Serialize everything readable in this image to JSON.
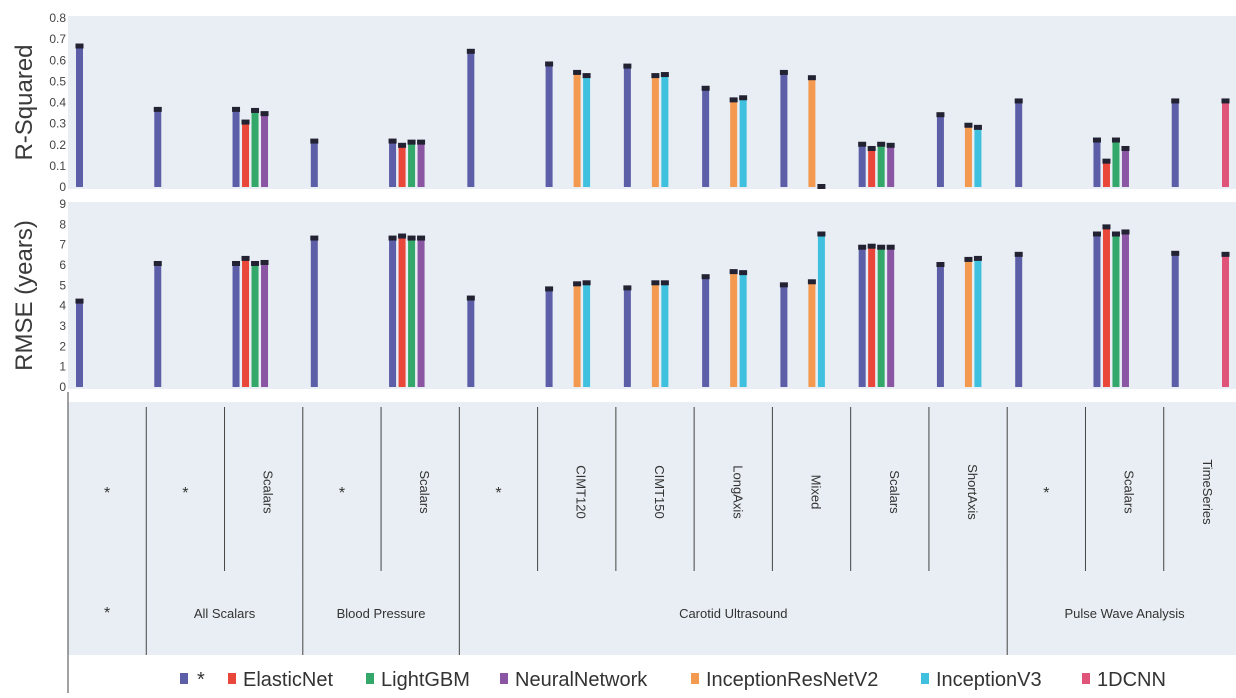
{
  "chart_data": {
    "type": "bar",
    "colors": {
      "panel_bg": "#e8eef3",
      "axis_line": "#444444",
      "error_bar": "#222233"
    },
    "groups": [
      {
        "top": "*",
        "bottom": "*"
      },
      {
        "top": "*",
        "bottom": "All Scalars"
      },
      {
        "top": "Scalars",
        "bottom": "All Scalars"
      },
      {
        "top": "*",
        "bottom": "Blood Pressure"
      },
      {
        "top": "Scalars",
        "bottom": "Blood Pressure"
      },
      {
        "top": "*",
        "bottom": "Carotid Ultrasound"
      },
      {
        "top": "CIMT120",
        "bottom": "Carotid Ultrasound"
      },
      {
        "top": "CIMT150",
        "bottom": "Carotid Ultrasound"
      },
      {
        "top": "LongAxis",
        "bottom": "Carotid Ultrasound"
      },
      {
        "top": "Mixed",
        "bottom": "Carotid Ultrasound"
      },
      {
        "top": "Scalars",
        "bottom": "Carotid Ultrasound"
      },
      {
        "top": "ShortAxis",
        "bottom": "Carotid Ultrasound"
      },
      {
        "top": "*",
        "bottom": "Pulse Wave Analysis"
      },
      {
        "top": "Scalars",
        "bottom": "Pulse Wave Analysis"
      },
      {
        "top": "TimeSeries",
        "bottom": "Pulse Wave Analysis"
      }
    ],
    "bottom_categories": [
      "*",
      "All Scalars",
      "Blood Pressure",
      "Carotid Ultrasound",
      "Pulse Wave Analysis"
    ],
    "series": [
      {
        "name": "*",
        "color": "#5c5fa8"
      },
      {
        "name": "ElasticNet",
        "color": "#e8473a"
      },
      {
        "name": "LightGBM",
        "color": "#33a86a"
      },
      {
        "name": "NeuralNetwork",
        "color": "#8a55a3"
      },
      {
        "name": "InceptionResNetV2",
        "color": "#f39a50"
      },
      {
        "name": "InceptionV3",
        "color": "#3fc0de"
      },
      {
        "name": "1DCNN",
        "color": "#e0547a"
      }
    ],
    "panels": [
      {
        "ylabel": "R-Squared",
        "ylim": [
          0,
          0.8
        ],
        "yticks": [
          "0",
          "0.1",
          "0.2",
          "0.3",
          "0.4",
          "0.5",
          "0.6",
          "0.7",
          "0.8"
        ],
        "bars": [
          {
            "group": 0,
            "series": "*",
            "value": 0.665
          },
          {
            "group": 1,
            "series": "*",
            "value": 0.365
          },
          {
            "group": 2,
            "series": "*",
            "value": 0.365
          },
          {
            "group": 2,
            "series": "ElasticNet",
            "value": 0.305
          },
          {
            "group": 2,
            "series": "LightGBM",
            "value": 0.36
          },
          {
            "group": 2,
            "series": "NeuralNetwork",
            "value": 0.345
          },
          {
            "group": 3,
            "series": "*",
            "value": 0.215
          },
          {
            "group": 4,
            "series": "*",
            "value": 0.215
          },
          {
            "group": 4,
            "series": "ElasticNet",
            "value": 0.195
          },
          {
            "group": 4,
            "series": "LightGBM",
            "value": 0.21
          },
          {
            "group": 4,
            "series": "NeuralNetwork",
            "value": 0.21
          },
          {
            "group": 5,
            "series": "*",
            "value": 0.64
          },
          {
            "group": 6,
            "series": "*",
            "value": 0.58
          },
          {
            "group": 6,
            "series": "InceptionResNetV2",
            "value": 0.54
          },
          {
            "group": 6,
            "series": "InceptionV3",
            "value": 0.525
          },
          {
            "group": 7,
            "series": "*",
            "value": 0.57
          },
          {
            "group": 7,
            "series": "InceptionResNetV2",
            "value": 0.525
          },
          {
            "group": 7,
            "series": "InceptionV3",
            "value": 0.53
          },
          {
            "group": 8,
            "series": "*",
            "value": 0.465
          },
          {
            "group": 8,
            "series": "InceptionResNetV2",
            "value": 0.41
          },
          {
            "group": 8,
            "series": "InceptionV3",
            "value": 0.42
          },
          {
            "group": 9,
            "series": "*",
            "value": 0.54
          },
          {
            "group": 9,
            "series": "InceptionResNetV2",
            "value": 0.515
          },
          {
            "group": 9,
            "series": "InceptionV3",
            "value": 0.0
          },
          {
            "group": 10,
            "series": "*",
            "value": 0.2
          },
          {
            "group": 10,
            "series": "ElasticNet",
            "value": 0.18
          },
          {
            "group": 10,
            "series": "LightGBM",
            "value": 0.2
          },
          {
            "group": 10,
            "series": "NeuralNetwork",
            "value": 0.195
          },
          {
            "group": 11,
            "series": "*",
            "value": 0.34
          },
          {
            "group": 11,
            "series": "InceptionResNetV2",
            "value": 0.29
          },
          {
            "group": 11,
            "series": "InceptionV3",
            "value": 0.28
          },
          {
            "group": 12,
            "series": "*",
            "value": 0.405
          },
          {
            "group": 13,
            "series": "*",
            "value": 0.22
          },
          {
            "group": 13,
            "series": "ElasticNet",
            "value": 0.12
          },
          {
            "group": 13,
            "series": "LightGBM",
            "value": 0.22
          },
          {
            "group": 13,
            "series": "NeuralNetwork",
            "value": 0.18
          },
          {
            "group": 14,
            "series": "*",
            "value": 0.405
          },
          {
            "group": 14,
            "series": "1DCNN",
            "value": 0.405
          }
        ]
      },
      {
        "ylabel": "RMSE (years)",
        "ylim": [
          0,
          9
        ],
        "yticks": [
          "0",
          "1",
          "2",
          "3",
          "4",
          "5",
          "6",
          "7",
          "8",
          "9"
        ],
        "bars": [
          {
            "group": 0,
            "series": "*",
            "value": 4.2
          },
          {
            "group": 1,
            "series": "*",
            "value": 6.05
          },
          {
            "group": 2,
            "series": "*",
            "value": 6.05
          },
          {
            "group": 2,
            "series": "ElasticNet",
            "value": 6.3
          },
          {
            "group": 2,
            "series": "LightGBM",
            "value": 6.05
          },
          {
            "group": 2,
            "series": "NeuralNetwork",
            "value": 6.1
          },
          {
            "group": 3,
            "series": "*",
            "value": 7.3
          },
          {
            "group": 4,
            "series": "*",
            "value": 7.3
          },
          {
            "group": 4,
            "series": "ElasticNet",
            "value": 7.4
          },
          {
            "group": 4,
            "series": "LightGBM",
            "value": 7.3
          },
          {
            "group": 4,
            "series": "NeuralNetwork",
            "value": 7.3
          },
          {
            "group": 5,
            "series": "*",
            "value": 4.35
          },
          {
            "group": 6,
            "series": "*",
            "value": 4.8
          },
          {
            "group": 6,
            "series": "InceptionResNetV2",
            "value": 5.05
          },
          {
            "group": 6,
            "series": "InceptionV3",
            "value": 5.1
          },
          {
            "group": 7,
            "series": "*",
            "value": 4.85
          },
          {
            "group": 7,
            "series": "InceptionResNetV2",
            "value": 5.1
          },
          {
            "group": 7,
            "series": "InceptionV3",
            "value": 5.1
          },
          {
            "group": 8,
            "series": "*",
            "value": 5.4
          },
          {
            "group": 8,
            "series": "InceptionResNetV2",
            "value": 5.65
          },
          {
            "group": 8,
            "series": "InceptionV3",
            "value": 5.6
          },
          {
            "group": 9,
            "series": "*",
            "value": 5.0
          },
          {
            "group": 9,
            "series": "InceptionResNetV2",
            "value": 5.15
          },
          {
            "group": 9,
            "series": "InceptionV3",
            "value": 7.5
          },
          {
            "group": 10,
            "series": "*",
            "value": 6.85
          },
          {
            "group": 10,
            "series": "ElasticNet",
            "value": 6.9
          },
          {
            "group": 10,
            "series": "LightGBM",
            "value": 6.85
          },
          {
            "group": 10,
            "series": "NeuralNetwork",
            "value": 6.85
          },
          {
            "group": 11,
            "series": "*",
            "value": 6.0
          },
          {
            "group": 11,
            "series": "InceptionResNetV2",
            "value": 6.25
          },
          {
            "group": 11,
            "series": "InceptionV3",
            "value": 6.3
          },
          {
            "group": 12,
            "series": "*",
            "value": 6.5
          },
          {
            "group": 13,
            "series": "*",
            "value": 7.5
          },
          {
            "group": 13,
            "series": "ElasticNet",
            "value": 7.85
          },
          {
            "group": 13,
            "series": "LightGBM",
            "value": 7.5
          },
          {
            "group": 13,
            "series": "NeuralNetwork",
            "value": 7.6
          },
          {
            "group": 14,
            "series": "*",
            "value": 6.55
          },
          {
            "group": 14,
            "series": "1DCNN",
            "value": 6.5
          }
        ]
      }
    ],
    "legend": {
      "placement": "bottom"
    }
  }
}
